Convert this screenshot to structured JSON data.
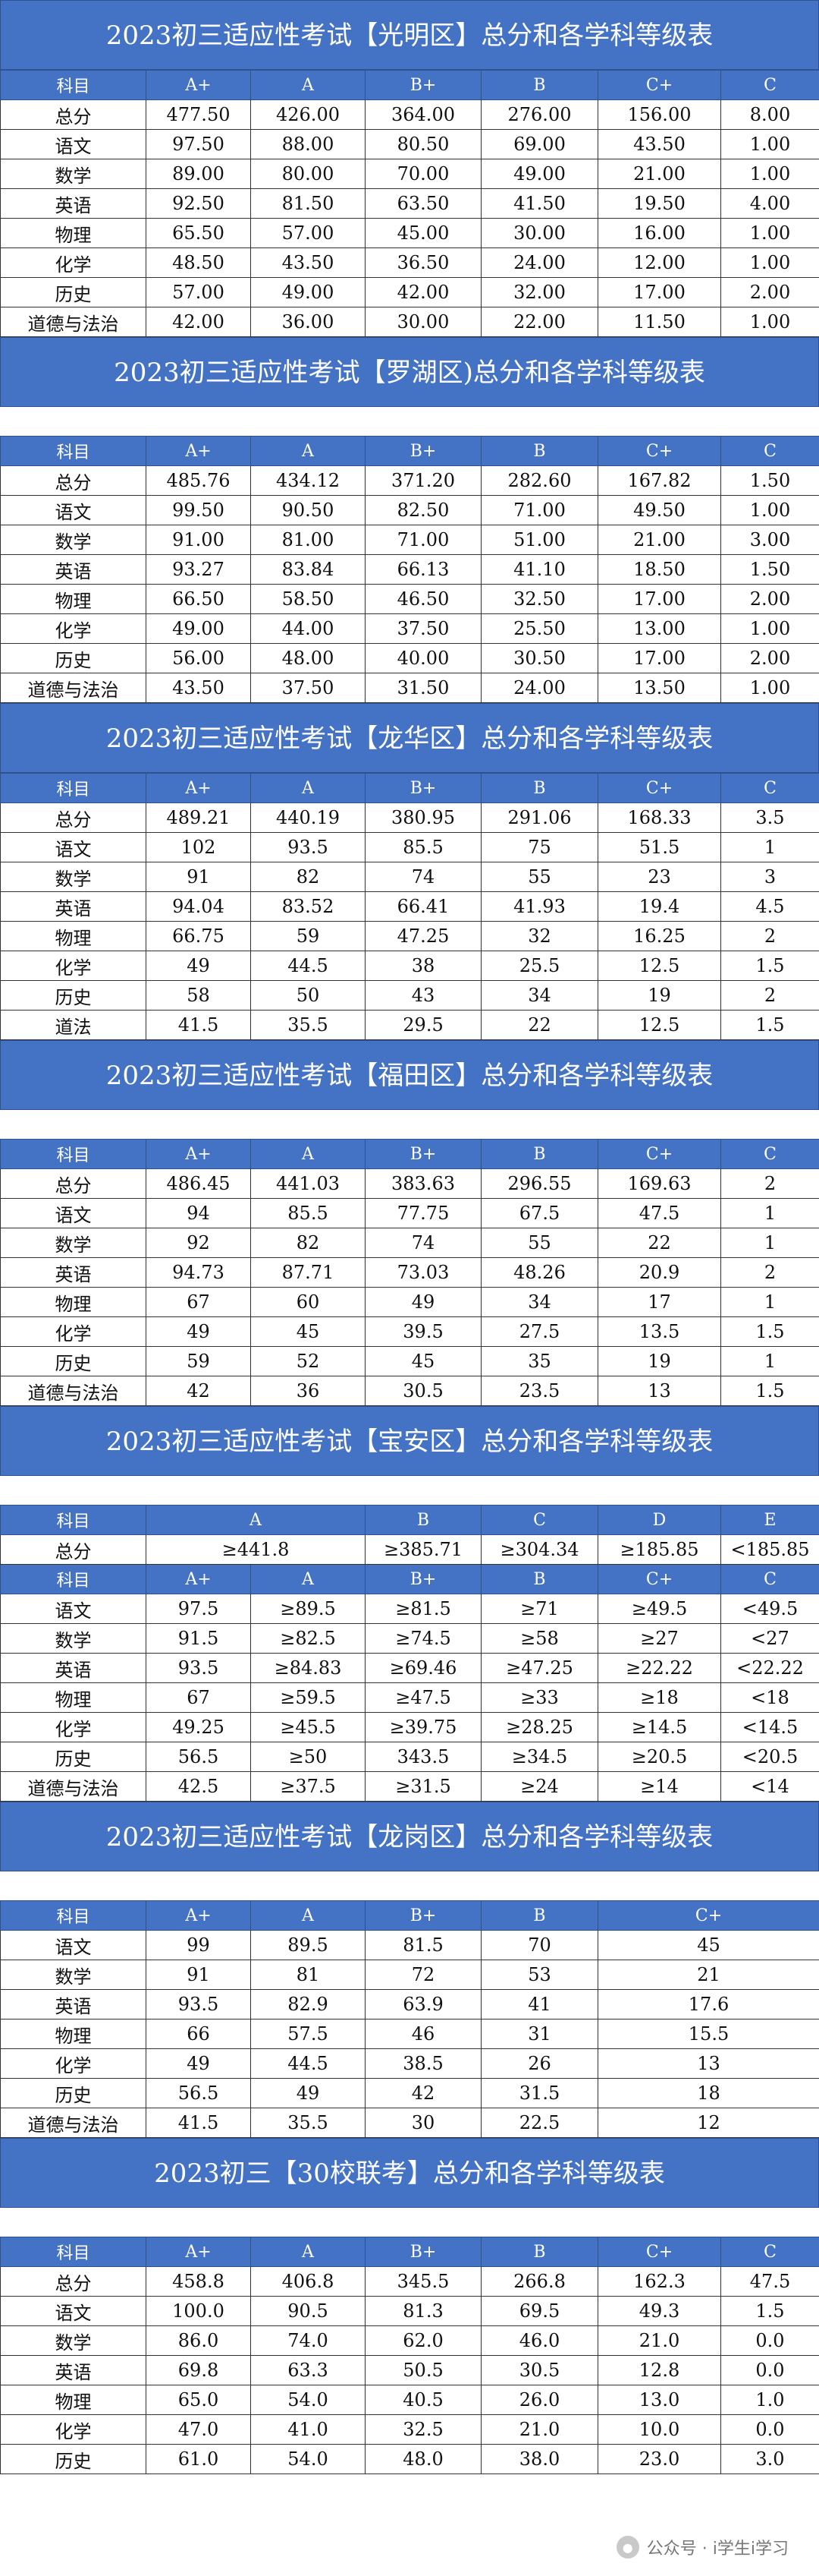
{
  "sections": [
    {
      "title": "2023初三适应性考试【光明区】总分和各学科等级表",
      "spacer": false,
      "rows": [
        {
          "head": true,
          "cells": [
            "科目",
            "A+",
            "A",
            "B+",
            "B",
            "C+",
            "C"
          ]
        },
        {
          "cells": [
            "总分",
            "477.50",
            "426.00",
            "364.00",
            "276.00",
            "156.00",
            "8.00"
          ]
        },
        {
          "cells": [
            "语文",
            "97.50",
            "88.00",
            "80.50",
            "69.00",
            "43.50",
            "1.00"
          ]
        },
        {
          "cells": [
            "数学",
            "89.00",
            "80.00",
            "70.00",
            "49.00",
            "21.00",
            "1.00"
          ]
        },
        {
          "cells": [
            "英语",
            "92.50",
            "81.50",
            "63.50",
            "41.50",
            "19.50",
            "4.00"
          ]
        },
        {
          "cells": [
            "物理",
            "65.50",
            "57.00",
            "45.00",
            "30.00",
            "16.00",
            "1.00"
          ]
        },
        {
          "cells": [
            "化学",
            "48.50",
            "43.50",
            "36.50",
            "24.00",
            "12.00",
            "1.00"
          ]
        },
        {
          "cells": [
            "历史",
            "57.00",
            "49.00",
            "42.00",
            "32.00",
            "17.00",
            "2.00"
          ]
        },
        {
          "cells": [
            "道德与法治",
            "42.00",
            "36.00",
            "30.00",
            "22.00",
            "11.50",
            "1.00"
          ]
        }
      ]
    },
    {
      "title": "2023初三适应性考试【罗湖区)总分和各学科等级表",
      "spacer": true,
      "rows": [
        {
          "head": true,
          "cells": [
            "科目",
            "A+",
            "A",
            "B+",
            "B",
            "C+",
            "C"
          ]
        },
        {
          "cells": [
            "总分",
            "485.76",
            "434.12",
            "371.20",
            "282.60",
            "167.82",
            "1.50"
          ]
        },
        {
          "cells": [
            "语文",
            "99.50",
            "90.50",
            "82.50",
            "71.00",
            "49.50",
            "1.00"
          ]
        },
        {
          "cells": [
            "数学",
            "91.00",
            "81.00",
            "71.00",
            "51.00",
            "21.00",
            "3.00"
          ]
        },
        {
          "cells": [
            "英语",
            "93.27",
            "83.84",
            "66.13",
            "41.10",
            "18.50",
            "1.50"
          ]
        },
        {
          "cells": [
            "物理",
            "66.50",
            "58.50",
            "46.50",
            "32.50",
            "17.00",
            "2.00"
          ]
        },
        {
          "cells": [
            "化学",
            "49.00",
            "44.00",
            "37.50",
            "25.50",
            "13.00",
            "1.00"
          ]
        },
        {
          "cells": [
            "历史",
            "56.00",
            "48.00",
            "40.00",
            "30.50",
            "17.00",
            "2.00"
          ]
        },
        {
          "cells": [
            "道德与法治",
            "43.50",
            "37.50",
            "31.50",
            "24.00",
            "13.50",
            "1.00"
          ]
        }
      ]
    },
    {
      "title": "2023初三适应性考试【龙华区】总分和各学科等级表",
      "spacer": false,
      "rows": [
        {
          "head": true,
          "cells": [
            "科目",
            "A+",
            "A",
            "B+",
            "B",
            "C+",
            "C"
          ]
        },
        {
          "cells": [
            "总分",
            "489.21",
            "440.19",
            "380.95",
            "291.06",
            "168.33",
            "3.5"
          ]
        },
        {
          "cells": [
            "语文",
            "102",
            "93.5",
            "85.5",
            "75",
            "51.5",
            "1"
          ]
        },
        {
          "cells": [
            "数学",
            "91",
            "82",
            "74",
            "55",
            "23",
            "3"
          ]
        },
        {
          "cells": [
            "英语",
            "94.04",
            "83.52",
            "66.41",
            "41.93",
            "19.4",
            "4.5"
          ]
        },
        {
          "cells": [
            "物理",
            "66.75",
            "59",
            "47.25",
            "32",
            "16.25",
            "2"
          ]
        },
        {
          "cells": [
            "化学",
            "49",
            "44.5",
            "38",
            "25.5",
            "12.5",
            "1.5"
          ]
        },
        {
          "cells": [
            "历史",
            "58",
            "50",
            "43",
            "34",
            "19",
            "2"
          ]
        },
        {
          "cells": [
            "道法",
            "41.5",
            "35.5",
            "29.5",
            "22",
            "12.5",
            "1.5"
          ]
        }
      ]
    },
    {
      "title": "2023初三适应性考试【福田区】总分和各学科等级表",
      "spacer": true,
      "rows": [
        {
          "head": true,
          "cells": [
            "科目",
            "A+",
            "A",
            "B+",
            "B",
            "C+",
            "C"
          ]
        },
        {
          "cells": [
            "总分",
            "486.45",
            "441.03",
            "383.63",
            "296.55",
            "169.63",
            "2"
          ]
        },
        {
          "cells": [
            "语文",
            "94",
            "85.5",
            "77.75",
            "67.5",
            "47.5",
            "1"
          ]
        },
        {
          "cells": [
            "数学",
            "92",
            "82",
            "74",
            "55",
            "22",
            "1"
          ]
        },
        {
          "cells": [
            "英语",
            "94.73",
            "87.71",
            "73.03",
            "48.26",
            "20.9",
            "2"
          ]
        },
        {
          "cells": [
            "物理",
            "67",
            "60",
            "49",
            "34",
            "17",
            "1"
          ]
        },
        {
          "cells": [
            "化学",
            "49",
            "45",
            "39.5",
            "27.5",
            "13.5",
            "1.5"
          ]
        },
        {
          "cells": [
            "历史",
            "59",
            "52",
            "45",
            "35",
            "19",
            "1"
          ]
        },
        {
          "cells": [
            "道德与法治",
            "42",
            "36",
            "30.5",
            "23.5",
            "13",
            "1.5"
          ]
        }
      ]
    },
    {
      "title": "2023初三适应性考试【宝安区】总分和各学科等级表",
      "spacer": true,
      "rows": [
        {
          "head": true,
          "spans": [
            1,
            2,
            1,
            1,
            1,
            1
          ],
          "cells": [
            "科目",
            "A",
            "B",
            "C",
            "D",
            "E"
          ]
        },
        {
          "spans": [
            1,
            2,
            1,
            1,
            1,
            1
          ],
          "cells": [
            "总分",
            "≥441.8",
            "≥385.71",
            "≥304.34",
            "≥185.85",
            "<185.85"
          ]
        },
        {
          "head": true,
          "cells": [
            "科目",
            "A+",
            "A",
            "B+",
            "B",
            "C+",
            "C"
          ]
        },
        {
          "cells": [
            "语文",
            "97.5",
            "≥89.5",
            "≥81.5",
            "≥71",
            "≥49.5",
            "<49.5"
          ]
        },
        {
          "cells": [
            "数学",
            "91.5",
            "≥82.5",
            "≥74.5",
            "≥58",
            "≥27",
            "<27"
          ]
        },
        {
          "cells": [
            "英语",
            "93.5",
            "≥84.83",
            "≥69.46",
            "≥47.25",
            "≥22.22",
            "<22.22"
          ]
        },
        {
          "cells": [
            "物理",
            "67",
            "≥59.5",
            "≥47.5",
            "≥33",
            "≥18",
            "<18"
          ]
        },
        {
          "cells": [
            "化学",
            "49.25",
            "≥45.5",
            "≥39.75",
            "≥28.25",
            "≥14.5",
            "<14.5"
          ]
        },
        {
          "cells": [
            "历史",
            "56.5",
            "≥50",
            "343.5",
            "≥34.5",
            "≥20.5",
            "<20.5"
          ]
        },
        {
          "cells": [
            "道德与法治",
            "42.5",
            "≥37.5",
            "≥31.5",
            "≥24",
            "≥14",
            "<14"
          ]
        }
      ]
    },
    {
      "title": "2023初三适应性考试【龙岗区】总分和各学科等级表",
      "spacer": true,
      "rows": [
        {
          "head": true,
          "spans": [
            1,
            1,
            1,
            1,
            1,
            2
          ],
          "cells": [
            "科目",
            "A+",
            "A",
            "B+",
            "B",
            "C+"
          ]
        },
        {
          "spans": [
            1,
            1,
            1,
            1,
            1,
            2
          ],
          "cells": [
            "语文",
            "99",
            "89.5",
            "81.5",
            "70",
            "45"
          ]
        },
        {
          "spans": [
            1,
            1,
            1,
            1,
            1,
            2
          ],
          "cells": [
            "数学",
            "91",
            "81",
            "72",
            "53",
            "21"
          ]
        },
        {
          "spans": [
            1,
            1,
            1,
            1,
            1,
            2
          ],
          "cells": [
            "英语",
            "93.5",
            "82.9",
            "63.9",
            "41",
            "17.6"
          ]
        },
        {
          "spans": [
            1,
            1,
            1,
            1,
            1,
            2
          ],
          "cells": [
            "物理",
            "66",
            "57.5",
            "46",
            "31",
            "15.5"
          ]
        },
        {
          "spans": [
            1,
            1,
            1,
            1,
            1,
            2
          ],
          "cells": [
            "化学",
            "49",
            "44.5",
            "38.5",
            "26",
            "13"
          ]
        },
        {
          "spans": [
            1,
            1,
            1,
            1,
            1,
            2
          ],
          "cells": [
            "历史",
            "56.5",
            "49",
            "42",
            "31.5",
            "18"
          ]
        },
        {
          "spans": [
            1,
            1,
            1,
            1,
            1,
            2
          ],
          "cells": [
            "道德与法治",
            "41.5",
            "35.5",
            "30",
            "22.5",
            "12"
          ]
        }
      ]
    },
    {
      "title": "2023初三【30校联考】总分和各学科等级表",
      "spacer": true,
      "rows": [
        {
          "head": true,
          "cells": [
            "科目",
            "A+",
            "A",
            "B+",
            "B",
            "C+",
            "C"
          ]
        },
        {
          "cells": [
            "总分",
            "458.8",
            "406.8",
            "345.5",
            "266.8",
            "162.3",
            "47.5"
          ]
        },
        {
          "cells": [
            "语文",
            "100.0",
            "90.5",
            "81.3",
            "69.5",
            "49.3",
            "1.5"
          ]
        },
        {
          "cells": [
            "数学",
            "86.0",
            "74.0",
            "62.0",
            "46.0",
            "21.0",
            "0.0"
          ]
        },
        {
          "cells": [
            "英语",
            "69.8",
            "63.3",
            "50.5",
            "30.5",
            "12.8",
            "0.0"
          ]
        },
        {
          "cells": [
            "物理",
            "65.0",
            "54.0",
            "40.5",
            "26.0",
            "13.0",
            "1.0"
          ]
        },
        {
          "cells": [
            "化学",
            "47.0",
            "41.0",
            "32.5",
            "21.0",
            "10.0",
            "0.0"
          ]
        },
        {
          "cells": [
            "历史",
            "61.0",
            "54.0",
            "48.0",
            "38.0",
            "23.0",
            "3.0"
          ]
        }
      ]
    }
  ],
  "watermark": {
    "text": "公众号 · i学生i学习",
    "icon": "wechat-icon"
  },
  "colors": {
    "header_bg": "#4472c4",
    "header_text": "#ffffff",
    "border": "#333333"
  }
}
